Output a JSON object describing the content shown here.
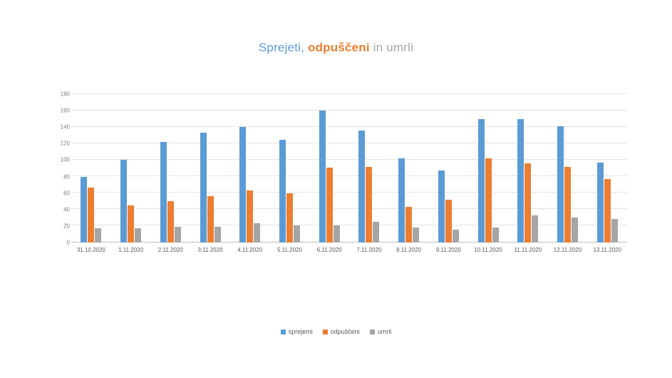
{
  "title": {
    "sprejeti": "Sprejeti",
    "separator": ", ",
    "odpusceni": "odpuščeni",
    "in": " in ",
    "umrli": "umrli"
  },
  "colors": {
    "series_blue": "#5B9BD5",
    "series_orange": "#ED7D31",
    "series_gray": "#A5A5A5",
    "axis_text": "#7f7f7f",
    "gridline": "#e3e3e3"
  },
  "chart_data": {
    "type": "bar",
    "title": "Sprejeti, odpuščeni in umrli",
    "categories": [
      "31.10.2020",
      "1.11.2020",
      "2.11.2020",
      "3.11.2020",
      "4.11.2020",
      "5.11.2020",
      "6.11.2020",
      "7.11.2020",
      "8.11.2020",
      "9.11.2020",
      "10.11.2020",
      "11.11.2020",
      "12.11.2020",
      "13.11.2020"
    ],
    "series": [
      {
        "name": "sprejemi",
        "color": "#5B9BD5",
        "values": [
          80,
          100,
          122,
          133,
          140,
          125,
          160,
          136,
          102,
          87,
          150,
          150,
          141,
          97
        ]
      },
      {
        "name": "odpuščeni",
        "color": "#ED7D31",
        "values": [
          67,
          45,
          50,
          56,
          63,
          60,
          91,
          92,
          43,
          52,
          102,
          96,
          92,
          77
        ]
      },
      {
        "name": "umrli",
        "color": "#A5A5A5",
        "values": [
          17,
          17,
          19,
          19,
          23,
          21,
          21,
          25,
          18,
          16,
          18,
          33,
          30,
          29
        ]
      }
    ],
    "xlabel": "",
    "ylabel": "",
    "ylim": [
      0,
      180
    ],
    "ytick_step": 20,
    "grid": true,
    "legend_position": "bottom"
  }
}
